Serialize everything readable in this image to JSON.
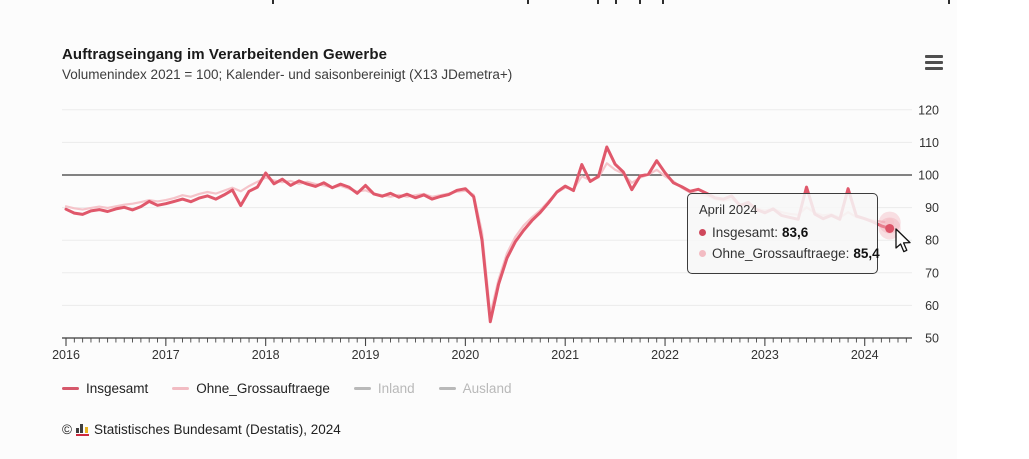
{
  "page": {
    "title": "Auftragseingang im Verarbeitenden Gewerbe",
    "subtitle": "Volumenindex 2021 = 100; Kalender- und saisonbereinigt (X13 JDemetra+)"
  },
  "colors": {
    "insgesamt": "#e0586b",
    "ohne_grossauftraege": "#f5c4ca",
    "inactive_gray": "#bbbbbb",
    "axis_dark": "#3a3a3a",
    "gridline": "#ebebeb",
    "background": "#fcfcfc"
  },
  "chart_data": {
    "type": "line",
    "title": "Auftragseingang im Verarbeitenden Gewerbe",
    "subtitle": "Volumenindex 2021 = 100; Kalender- und saisonbereinigt (X13 JDemetra+)",
    "x_start": "2016-01",
    "x_interval": "monthly",
    "x_tick_labels": [
      "2016",
      "2017",
      "2018",
      "2019",
      "2020",
      "2021",
      "2022",
      "2023",
      "2024"
    ],
    "y_ticks": [
      50,
      60,
      70,
      80,
      90,
      100,
      110,
      120
    ],
    "ylim": [
      50,
      123
    ],
    "ref_line": 100,
    "grid": "horizontal",
    "legend_position": "bottom",
    "series": [
      {
        "name": "Insgesamt",
        "color": "#e0586b",
        "width": 3,
        "visible": true,
        "values": [
          89.5,
          88.3,
          87.9,
          89.0,
          89.4,
          88.8,
          89.6,
          90.1,
          89.3,
          90.3,
          91.9,
          90.7,
          91.2,
          91.9,
          92.6,
          91.8,
          92.9,
          93.6,
          92.6,
          93.9,
          95.4,
          90.6,
          95.0,
          96.3,
          100.6,
          97.3,
          98.7,
          96.8,
          98.2,
          97.2,
          96.5,
          97.6,
          96.1,
          97.2,
          96.3,
          94.4,
          96.8,
          94.2,
          93.5,
          94.4,
          93.2,
          94.1,
          93.0,
          93.9,
          92.6,
          93.4,
          94.0,
          95.3,
          95.8,
          93.3,
          80.0,
          55.0,
          66.5,
          74.5,
          79.5,
          83.0,
          86.0,
          88.5,
          91.5,
          94.8,
          96.6,
          95.2,
          103.2,
          98.0,
          99.6,
          108.6,
          103.3,
          100.9,
          95.5,
          99.7,
          100.2,
          104.4,
          100.7,
          97.6,
          96.4,
          95.0,
          95.6,
          94.4,
          93.0,
          92.6,
          93.6,
          90.6,
          91.6,
          89.4,
          88.4,
          89.6,
          87.6,
          87.0,
          86.4,
          96.3,
          88.0,
          86.6,
          87.6,
          86.4,
          95.8,
          87.4,
          86.6,
          85.6,
          84.4,
          83.6
        ]
      },
      {
        "name": "Ohne_Grossauftraege",
        "color": "#f5c4ca",
        "width": 2.2,
        "visible": true,
        "values": [
          90.4,
          89.8,
          89.4,
          89.9,
          90.3,
          89.9,
          90.4,
          90.9,
          91.2,
          91.7,
          92.3,
          91.9,
          92.3,
          92.9,
          93.8,
          93.3,
          94.2,
          94.8,
          94.3,
          95.2,
          96.1,
          95.0,
          96.6,
          97.9,
          99.2,
          98.3,
          97.8,
          98.2,
          97.3,
          97.9,
          97.2,
          96.8,
          96.2,
          96.7,
          95.8,
          94.9,
          95.3,
          94.3,
          93.8,
          93.3,
          93.9,
          93.3,
          93.8,
          94.2,
          93.3,
          93.8,
          94.3,
          94.9,
          95.2,
          93.9,
          82.5,
          57.3,
          68.0,
          76.0,
          81.0,
          84.5,
          87.0,
          89.2,
          92.0,
          94.6,
          96.1,
          95.6,
          99.6,
          98.4,
          99.2,
          103.6,
          101.6,
          100.4,
          97.6,
          99.2,
          100.1,
          101.6,
          99.6,
          98.1,
          96.1,
          94.6,
          94.2,
          93.6,
          92.6,
          92.1,
          92.6,
          91.1,
          90.6,
          89.6,
          89.1,
          89.6,
          88.6,
          88.1,
          87.8,
          90.1,
          88.4,
          87.6,
          87.9,
          86.9,
          88.6,
          87.1,
          86.6,
          86.1,
          85.7,
          85.4
        ]
      },
      {
        "name": "Inland",
        "color": "#bbbbbb",
        "visible": false
      },
      {
        "name": "Ausland",
        "color": "#bbbbbb",
        "visible": false
      }
    ],
    "highlight": {
      "x_label": "April 2024",
      "month_index": 99,
      "points": [
        {
          "series": "Ohne_Grossauftraege",
          "value": 85.4,
          "color": "#f5c4ca"
        },
        {
          "series": "Insgesamt",
          "value": 83.6,
          "color": "#dd5468"
        }
      ]
    }
  },
  "tooltip": {
    "title": "April 2024",
    "items": [
      {
        "label": "Insgesamt:",
        "value": "83,6",
        "color": "#cf485c"
      },
      {
        "label": "Ohne_Grossauftraege:",
        "value": "85,4",
        "color": "#f3bcc3"
      }
    ]
  },
  "legend": {
    "items": [
      {
        "label": "Insgesamt",
        "color": "#d6586b",
        "label_color": "#222222",
        "active": true
      },
      {
        "label": "Ohne_Grossauftraege",
        "color": "#f2bcc3",
        "label_color": "#222222",
        "active": true
      },
      {
        "label": "Inland",
        "color": "#b9b9b9",
        "label_color": "#b9b9b9",
        "active": false
      },
      {
        "label": "Ausland",
        "color": "#b9b9b9",
        "label_color": "#b9b9b9",
        "active": false
      }
    ]
  },
  "footer": {
    "copyright": "©",
    "source": "Statistisches Bundesamt (Destatis), 2024"
  }
}
